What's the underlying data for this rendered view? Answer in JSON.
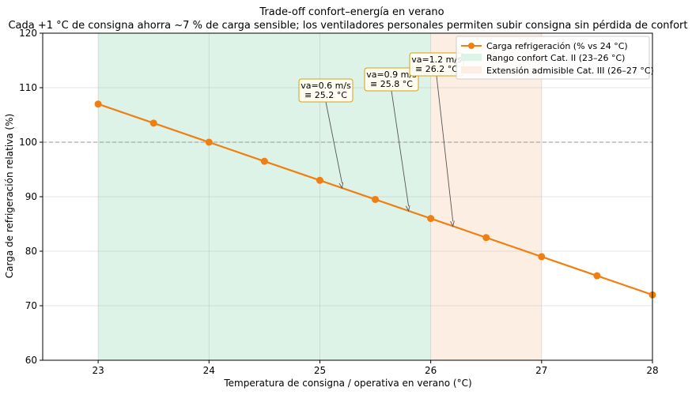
{
  "chart_data": {
    "type": "line",
    "title": "Trade-off confort–energía en verano",
    "subtitle": "Cada +1 °C de consigna ahorra ~7 % de carga sensible; los ventiladores personales permiten subir consigna sin pérdida de confort",
    "xlabel": "Temperatura de consigna / operativa en verano (°C)",
    "ylabel": "Carga de refrigeración relativa (%)",
    "xlim": [
      22.5,
      28
    ],
    "ylim": [
      60,
      120
    ],
    "x_ticks": [
      23,
      24,
      25,
      26,
      27,
      28
    ],
    "y_ticks": [
      60,
      70,
      80,
      90,
      100,
      110,
      120
    ],
    "grid": true,
    "legend_position": "top-right",
    "series": [
      {
        "name": "Carga refrigeración (% vs 24 °C)",
        "color": "#f07f12",
        "x": [
          23,
          23.5,
          24,
          24.5,
          25,
          25.5,
          26,
          26.5,
          27,
          27.5,
          28
        ],
        "y": [
          107,
          103.5,
          100,
          96.5,
          93,
          89.5,
          86,
          82.5,
          79,
          75.5,
          72
        ]
      }
    ],
    "reference_line": {
      "y": 100,
      "style": "dashed",
      "color": "#999999"
    },
    "bands": [
      {
        "label": "Rango confort Cat. II (23–26 °C)",
        "x": [
          23,
          26
        ],
        "color": "#ddf3e8"
      },
      {
        "label": "Extensión admisible Cat. III (26–27 °C)",
        "x": [
          26,
          27
        ],
        "color": "#fdeee3"
      }
    ],
    "annotations": [
      {
        "lines": [
          "va=0.6 m/s",
          "≡ 25.2 °C"
        ],
        "x": 25.2,
        "y": 91.6
      },
      {
        "lines": [
          "va=0.9 m/s",
          "≡ 25.8 °C"
        ],
        "x": 25.8,
        "y": 87.4
      },
      {
        "lines": [
          "va=1.2 m/s",
          "≡ 26.2 °C"
        ],
        "x": 26.2,
        "y": 84.6
      }
    ],
    "colors": {
      "annotation_box_border": "#d4a017",
      "annotation_box_fill": "#fffdf2"
    }
  }
}
